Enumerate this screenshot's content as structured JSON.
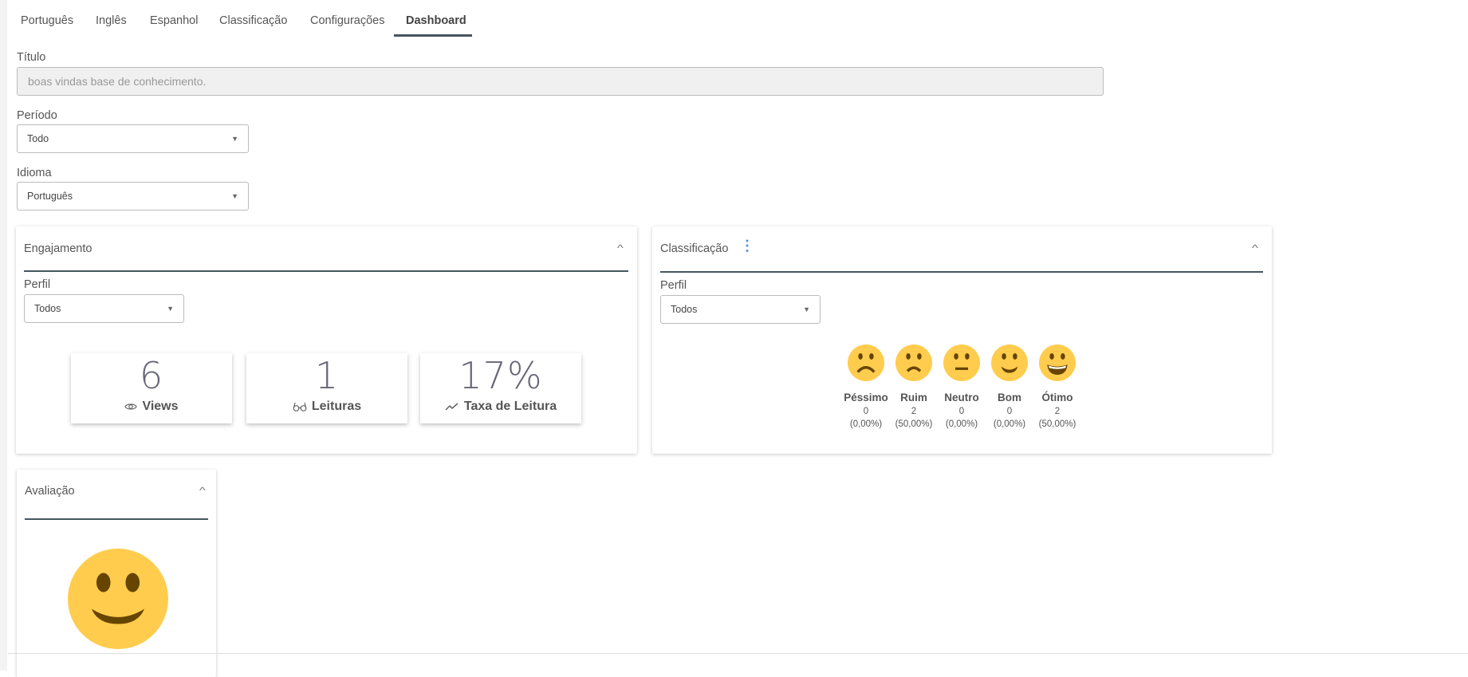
{
  "tabs": [
    {
      "label": "Português"
    },
    {
      "label": "Inglês"
    },
    {
      "label": "Espanhol"
    },
    {
      "label": "Classificação"
    },
    {
      "label": "Configurações"
    },
    {
      "label": "Dashboard",
      "active": true
    }
  ],
  "form": {
    "title_label": "Título",
    "title_value": "boas vindas base de conhecimento.",
    "period_label": "Período",
    "period_value": "Todo",
    "language_label": "Idioma",
    "language_value": "Português"
  },
  "engagement": {
    "title": "Engajamento",
    "profile_label": "Perfil",
    "profile_value": "Todos",
    "stats": [
      {
        "value": "6",
        "label": "Views",
        "icon": "eye-icon"
      },
      {
        "value": "1",
        "label": "Leituras",
        "icon": "glasses-icon"
      },
      {
        "value": "17%",
        "label": "Taxa de Leitura",
        "icon": "trend-icon"
      }
    ]
  },
  "classification": {
    "title": "Classificação",
    "profile_label": "Perfil",
    "profile_value": "Todos",
    "ratings": [
      {
        "name": "Péssimo",
        "count": "0",
        "pct": "(0,00%)",
        "face": "very-sad"
      },
      {
        "name": "Ruim",
        "count": "2",
        "pct": "(50,00%)",
        "face": "sad"
      },
      {
        "name": "Neutro",
        "count": "0",
        "pct": "(0,00%)",
        "face": "neutral"
      },
      {
        "name": "Bom",
        "count": "0",
        "pct": "(0,00%)",
        "face": "smile"
      },
      {
        "name": "Ótimo",
        "count": "2",
        "pct": "(50,00%)",
        "face": "grin"
      }
    ]
  },
  "evaluation": {
    "title": "Avaliação",
    "face": "smile"
  },
  "colors": {
    "accent": "#46555f",
    "face": "#ffcc4d",
    "face_feature": "#664500",
    "kebab": "#4a90d9"
  }
}
